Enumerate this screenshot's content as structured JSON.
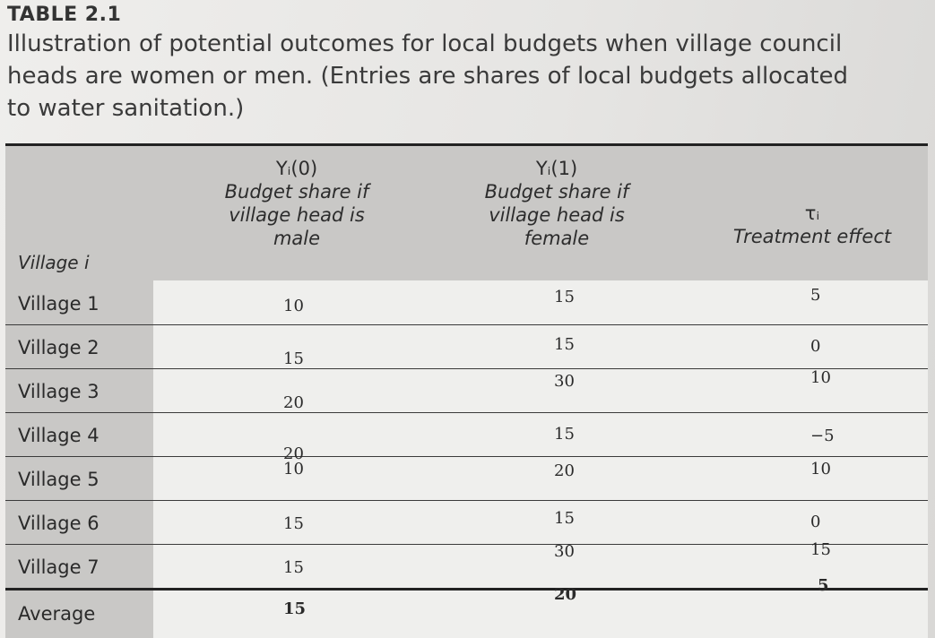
{
  "caption": {
    "label": "TABLE 2.1",
    "title": "Illustration of potential outcomes for local budgets when village council heads are women or men. (Entries are shares of local budgets allocated to water sanitation.)"
  },
  "columns": {
    "village": "Village i",
    "y0_symbol": "Yᵢ(0)",
    "y0_line1": "Budget share if",
    "y0_line2": "village head is",
    "y0_line3": "male",
    "y1_symbol": "Yᵢ(1)",
    "y1_line1": "Budget share if",
    "y1_line2": "village head is",
    "y1_line3": "female",
    "tau_symbol": "τᵢ",
    "tau_line1": "Treatment effect"
  },
  "rows": [
    {
      "name": "Village 1",
      "y0": "10",
      "y1": "15",
      "tau": "5"
    },
    {
      "name": "Village 2",
      "y0": "15",
      "y1": "15",
      "tau": "0"
    },
    {
      "name": "Village 3",
      "y0": "20",
      "y1": "30",
      "tau": "10"
    },
    {
      "name": "Village 4",
      "y0": "20",
      "y1": "15",
      "tau": "−5"
    },
    {
      "name": "Village 5",
      "y0": "10",
      "y1": "20",
      "tau": "10"
    },
    {
      "name": "Village 6",
      "y0": "15",
      "y1": "15",
      "tau": "0"
    },
    {
      "name": "Village 7",
      "y0": "15",
      "y1": "30",
      "tau": "15"
    }
  ],
  "average": {
    "name": "Average",
    "y0": "15",
    "y1": "20",
    "tau": "5"
  }
}
